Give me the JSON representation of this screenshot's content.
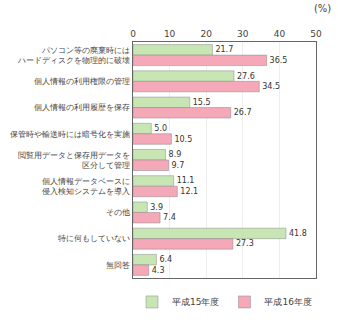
{
  "chart_data": {
    "type": "bar",
    "orientation": "horizontal",
    "title": "(%)",
    "categories": [
      "パソコン等の廃棄時には\nハードディスクを物理的に破壊",
      "個人情報の利用権限の管理",
      "個人情報の利用履歴を保存",
      "保管時や輸送時には暗号化を実施",
      "閲覧用データと保存用データを\n区分して管理",
      "個人情報データベースに\n侵入検知システムを導入",
      "その他",
      "特に何もしていない",
      "無回答"
    ],
    "series": [
      {
        "name": "平成15年度",
        "color": "#c8e6b4",
        "values": [
          21.7,
          27.6,
          15.5,
          5.0,
          8.9,
          11.1,
          3.9,
          41.8,
          6.4
        ],
        "value_labels": [
          "21.7",
          "27.6",
          "15.5",
          "5.0",
          "8.9",
          "11.1",
          "3.9",
          "41.8",
          "6.4"
        ]
      },
      {
        "name": "平成16年度",
        "color": "#f4a8b8",
        "values": [
          36.5,
          34.5,
          26.7,
          10.5,
          9.7,
          12.1,
          7.4,
          27.3,
          4.3
        ],
        "value_labels": [
          "36.5",
          "34.5",
          "26.7",
          "10.5",
          "9.7",
          "12.1",
          "7.4",
          "27.3",
          "4.3"
        ]
      }
    ],
    "xlim": [
      0,
      50
    ],
    "xticks": [
      0,
      10,
      20,
      30,
      40,
      50
    ],
    "grid": true,
    "legend": "bottom",
    "data_labels": true
  }
}
